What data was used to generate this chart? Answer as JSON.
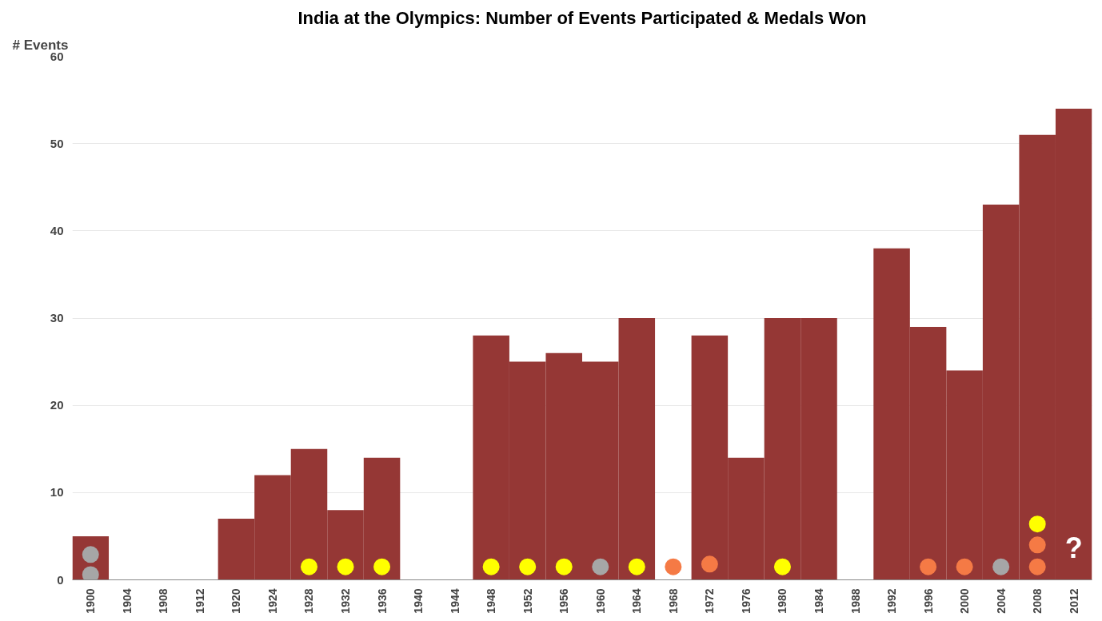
{
  "chart_data": {
    "type": "bar",
    "title": "India at the Olympics: Number of Events Participated & Medals Won",
    "ylabel": "# Events",
    "categories": [
      "1900",
      "1904",
      "1908",
      "1912",
      "1920",
      "1924",
      "1928",
      "1932",
      "1936",
      "1940",
      "1944",
      "1948",
      "1952",
      "1956",
      "1960",
      "1964",
      "1968",
      "1972",
      "1976",
      "1980",
      "1984",
      "1988",
      "1992",
      "1996",
      "2000",
      "2004",
      "2008",
      "2012"
    ],
    "series": [
      {
        "color": "#953735",
        "values": [
          5,
          0,
          0,
          0,
          7,
          12,
          15,
          8,
          14,
          0,
          0,
          28,
          25,
          26,
          25,
          30,
          0,
          28,
          14,
          30,
          30,
          0,
          38,
          29,
          24,
          43,
          51,
          54
        ]
      },
      {
        "type": "scatter",
        "color": "#ffff00",
        "values": [
          null,
          null,
          null,
          null,
          null,
          null,
          1.5,
          1.5,
          1.5,
          null,
          null,
          1.5,
          1.5,
          1.5,
          null,
          1.5,
          null,
          null,
          null,
          1.5,
          null,
          null,
          null,
          null,
          null,
          null,
          6.4,
          null
        ]
      },
      {
        "type": "scatter",
        "color": "#a6a6a6",
        "values": [
          2.9,
          null,
          null,
          null,
          null,
          null,
          null,
          null,
          null,
          null,
          null,
          null,
          null,
          null,
          1.5,
          null,
          null,
          null,
          null,
          null,
          null,
          null,
          null,
          null,
          null,
          1.5,
          null,
          null
        ]
      },
      {
        "type": "scatter",
        "color": "#a6a6a6",
        "values": [
          0.6,
          null,
          null,
          null,
          null,
          null,
          null,
          null,
          null,
          null,
          null,
          null,
          null,
          null,
          null,
          null,
          null,
          null,
          null,
          null,
          null,
          null,
          null,
          null,
          null,
          null,
          null,
          null
        ]
      },
      {
        "type": "scatter",
        "color": "#f57a45",
        "values": [
          null,
          null,
          null,
          null,
          null,
          null,
          null,
          null,
          null,
          null,
          null,
          null,
          null,
          null,
          null,
          null,
          1.5,
          1.8,
          null,
          null,
          null,
          null,
          null,
          1.5,
          1.5,
          null,
          1.5,
          null
        ]
      },
      {
        "type": "scatter",
        "color": "#f57a45",
        "values": [
          null,
          null,
          null,
          null,
          null,
          null,
          null,
          null,
          null,
          null,
          null,
          null,
          null,
          null,
          null,
          null,
          null,
          null,
          null,
          null,
          null,
          null,
          null,
          null,
          null,
          null,
          4.0,
          null
        ]
      }
    ],
    "ylim": [
      0,
      60
    ],
    "yticks": [
      0,
      10,
      20,
      30,
      40,
      50,
      60
    ],
    "grid": "y",
    "marker": "circle",
    "annotations": [
      "?"
    ]
  }
}
